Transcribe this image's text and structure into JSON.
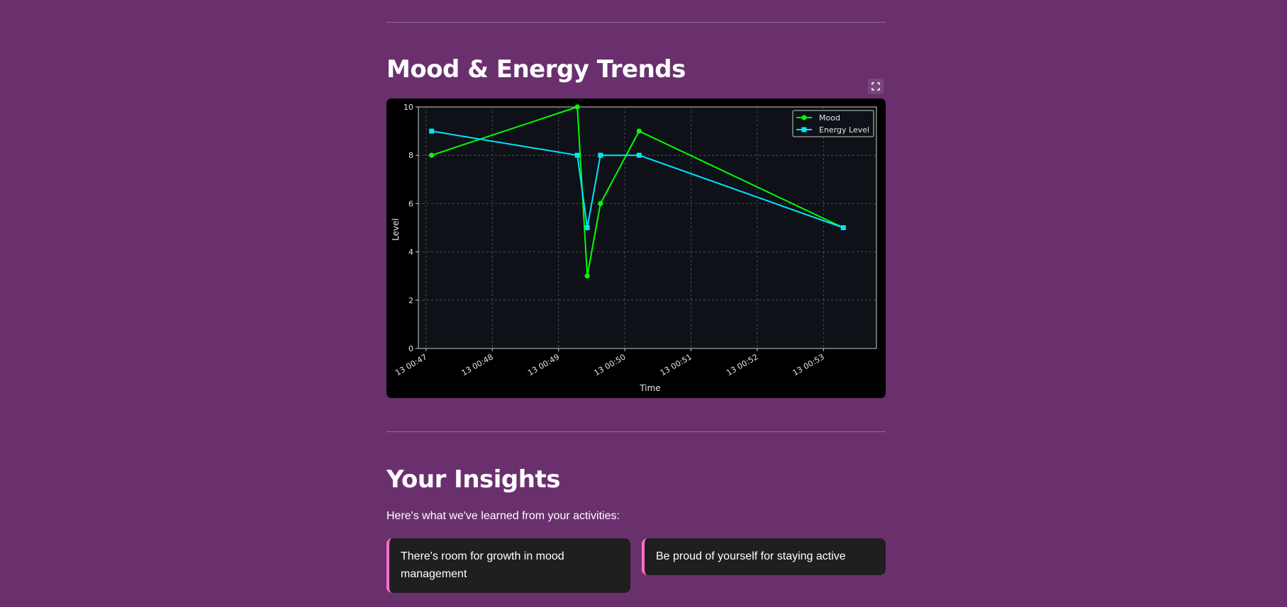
{
  "sections": {
    "trends_title": "Mood & Energy Trends",
    "insights_title": "Your Insights",
    "insights_caption": "Here's what we've learned from your activities:"
  },
  "insights": [
    "There's room for growth in mood management",
    "Be proud of yourself for staying active"
  ],
  "colors": {
    "background": "#6a306e",
    "chart_bg": "#000000",
    "plot_bg": "#0e1117",
    "mood": "#00ff00",
    "energy": "#00e5ff",
    "card_bg": "#1f1f1f",
    "card_accent": "#ff6ec7"
  },
  "icons": {
    "fullscreen": "fullscreen-icon"
  },
  "chart_data": {
    "type": "line",
    "xlabel": "Time",
    "ylabel": "Level",
    "ylim": [
      0,
      10
    ],
    "xlim": [
      "13 00:46:53",
      "13 00:53:48"
    ],
    "yticks": [
      0,
      2,
      4,
      6,
      8,
      10
    ],
    "xticks": [
      "13 00:47",
      "13 00:48",
      "13 00:49",
      "13 00:50",
      "13 00:51",
      "13 00:52",
      "13 00:53"
    ],
    "grid": true,
    "legend": "top-right",
    "series": [
      {
        "name": "Mood",
        "marker": "circle",
        "color": "#00ff00",
        "points": [
          {
            "x": "13 00:47:05",
            "y": 8
          },
          {
            "x": "13 00:49:17",
            "y": 10
          },
          {
            "x": "13 00:49:26",
            "y": 3
          },
          {
            "x": "13 00:49:38",
            "y": 6
          },
          {
            "x": "13 00:50:13",
            "y": 9
          },
          {
            "x": "13 00:53:18",
            "y": 5
          }
        ]
      },
      {
        "name": "Energy Level",
        "marker": "square",
        "color": "#00e5ff",
        "points": [
          {
            "x": "13 00:47:05",
            "y": 9
          },
          {
            "x": "13 00:49:17",
            "y": 8
          },
          {
            "x": "13 00:49:26",
            "y": 5
          },
          {
            "x": "13 00:49:38",
            "y": 8
          },
          {
            "x": "13 00:50:13",
            "y": 8
          },
          {
            "x": "13 00:53:18",
            "y": 5
          }
        ]
      }
    ]
  }
}
